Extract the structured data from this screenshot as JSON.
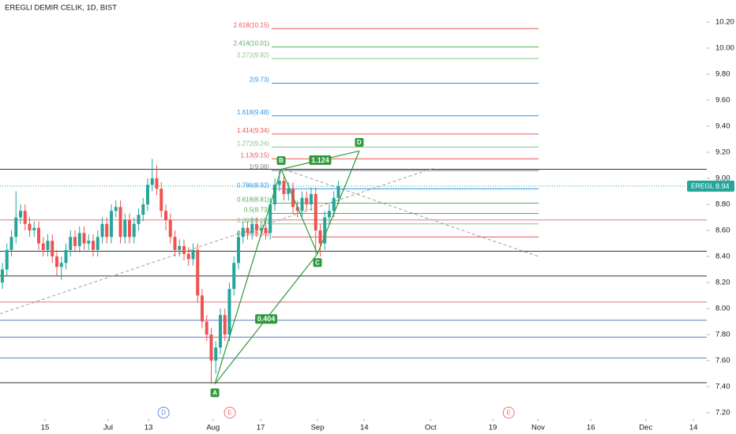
{
  "chart_data": {
    "type": "candlestick",
    "title": "EREGLI DEMIR CELIK, 1D, BIST",
    "up_color": "#26a69a",
    "down_color": "#ef5350",
    "open": [
      8.2,
      8.3,
      8.45,
      8.55,
      8.7,
      8.75,
      8.65,
      8.6,
      8.62,
      8.5,
      8.45,
      8.52,
      8.4,
      8.32,
      8.35,
      8.45,
      8.55,
      8.48,
      8.58,
      8.5,
      8.52,
      8.45,
      8.55,
      8.65,
      8.55,
      8.75,
      8.78,
      8.55,
      8.68,
      8.55,
      8.65,
      8.72,
      8.8,
      8.95,
      9.0,
      8.92,
      8.75,
      8.68,
      8.55,
      8.45,
      8.48,
      8.42,
      8.38,
      8.45,
      8.1,
      7.9,
      7.8,
      7.6,
      7.7,
      7.95,
      7.8,
      8.15,
      8.35,
      8.55,
      8.62,
      8.58,
      8.65,
      8.6,
      8.62,
      8.58,
      8.8,
      8.95,
      8.98,
      8.88,
      8.92,
      8.78,
      8.75,
      8.85,
      8.8,
      8.88,
      8.6,
      8.5,
      8.7,
      8.75,
      8.85
    ],
    "high": [
      8.35,
      8.5,
      8.6,
      8.9,
      8.8,
      8.8,
      8.7,
      8.67,
      8.67,
      8.55,
      8.57,
      8.57,
      8.45,
      8.4,
      8.5,
      8.6,
      8.6,
      8.63,
      8.63,
      8.57,
      8.57,
      8.6,
      8.7,
      8.7,
      8.8,
      8.83,
      8.83,
      8.73,
      8.73,
      8.7,
      8.77,
      8.85,
      9.0,
      9.15,
      9.1,
      8.97,
      8.8,
      8.73,
      8.6,
      8.53,
      8.53,
      8.47,
      8.5,
      8.5,
      8.15,
      7.95,
      7.85,
      7.75,
      8.0,
      8.0,
      8.2,
      8.4,
      8.6,
      8.67,
      8.67,
      8.7,
      8.7,
      8.67,
      8.67,
      8.85,
      9.0,
      9.06,
      9.03,
      8.97,
      8.97,
      8.83,
      8.9,
      8.9,
      8.93,
      8.93,
      8.65,
      8.75,
      8.8,
      8.9,
      8.98
    ],
    "low": [
      8.15,
      8.25,
      8.4,
      8.5,
      8.65,
      8.6,
      8.55,
      8.55,
      8.45,
      8.4,
      8.4,
      8.35,
      8.25,
      8.22,
      8.3,
      8.4,
      8.43,
      8.43,
      8.45,
      8.45,
      8.4,
      8.4,
      8.5,
      8.5,
      8.5,
      8.7,
      8.5,
      8.5,
      8.5,
      8.5,
      8.6,
      8.67,
      8.75,
      8.9,
      8.87,
      8.7,
      8.6,
      8.5,
      8.4,
      8.4,
      8.37,
      8.33,
      8.33,
      8.05,
      7.85,
      7.75,
      7.42,
      7.5,
      7.65,
      7.75,
      7.75,
      8.1,
      8.3,
      8.5,
      8.53,
      8.53,
      8.55,
      8.55,
      8.53,
      8.53,
      8.75,
      8.9,
      8.83,
      8.83,
      8.73,
      8.7,
      8.7,
      8.75,
      8.75,
      8.42,
      8.4,
      8.45,
      8.65,
      8.7,
      8.8
    ],
    "close": [
      8.3,
      8.45,
      8.55,
      8.7,
      8.75,
      8.65,
      8.6,
      8.62,
      8.5,
      8.45,
      8.52,
      8.4,
      8.32,
      8.35,
      8.45,
      8.55,
      8.48,
      8.58,
      8.5,
      8.52,
      8.45,
      8.55,
      8.65,
      8.55,
      8.75,
      8.78,
      8.55,
      8.68,
      8.55,
      8.65,
      8.72,
      8.8,
      8.95,
      9.0,
      8.92,
      8.75,
      8.68,
      8.55,
      8.45,
      8.48,
      8.42,
      8.38,
      8.45,
      8.1,
      7.9,
      7.8,
      7.6,
      7.7,
      7.95,
      7.8,
      8.15,
      8.35,
      8.55,
      8.62,
      8.58,
      8.65,
      8.6,
      8.62,
      8.58,
      8.8,
      8.95,
      8.98,
      8.88,
      8.92,
      8.78,
      8.75,
      8.85,
      8.8,
      8.88,
      8.6,
      8.5,
      8.7,
      8.75,
      8.85,
      8.94
    ],
    "xlim": [
      -0.52,
      155.13
    ],
    "xticks": [
      {
        "value": 9.4,
        "label": "15"
      },
      {
        "value": 23.3,
        "label": "Jul"
      },
      {
        "value": 32.2,
        "label": "13"
      },
      {
        "value": 46.4,
        "label": "Aug"
      },
      {
        "value": 56.9,
        "label": "17"
      },
      {
        "value": 69.4,
        "label": "Sep"
      },
      {
        "value": 79.7,
        "label": "14"
      },
      {
        "value": 94.3,
        "label": "Oct"
      },
      {
        "value": 108,
        "label": "19"
      },
      {
        "value": 118,
        "label": "Nov"
      },
      {
        "value": 129.6,
        "label": "16"
      },
      {
        "value": 141.7,
        "label": "Dec"
      },
      {
        "value": 152.2,
        "label": "14"
      }
    ],
    "ylim": [
      7.2,
      10.2
    ],
    "yticks": [
      {
        "value": 10.2,
        "label": "10.20"
      },
      {
        "value": 10.0,
        "label": "10.00"
      },
      {
        "value": 9.8,
        "label": "9.80"
      },
      {
        "value": 9.6,
        "label": "9.60"
      },
      {
        "value": 9.4,
        "label": "9.40"
      },
      {
        "value": 9.2,
        "label": "9.20"
      },
      {
        "value": 9.0,
        "label": "9.00"
      },
      {
        "value": 8.8,
        "label": "8.80"
      },
      {
        "value": 8.6,
        "label": "8.60"
      },
      {
        "value": 8.4,
        "label": "8.40"
      },
      {
        "value": 8.2,
        "label": "8.20"
      },
      {
        "value": 8.0,
        "label": "8.00"
      },
      {
        "value": 7.8,
        "label": "7.80"
      },
      {
        "value": 7.6,
        "label": "7.60"
      },
      {
        "value": 7.4,
        "label": "7.40"
      },
      {
        "value": 7.2,
        "label": "7.20"
      }
    ],
    "last_price": {
      "symbol": "EREGL",
      "value": 8.94,
      "color": "#26a69a"
    },
    "levels": [
      {
        "value": 9.07,
        "color": "#333333"
      },
      {
        "value": 8.44,
        "color": "#333333"
      },
      {
        "value": 8.25,
        "color": "#333333"
      },
      {
        "value": 7.43,
        "color": "#333333"
      },
      {
        "value": 8.68,
        "color": "#e57373"
      },
      {
        "value": 8.05,
        "color": "#e57373"
      },
      {
        "value": 7.91,
        "color": "#5c7cc4"
      },
      {
        "value": 7.78,
        "color": "#5c7cc4"
      },
      {
        "value": 7.62,
        "color": "#5c7cc4"
      }
    ],
    "fib_xlim": [
      59.3,
      118.1
    ],
    "fib": [
      {
        "label": "2.618(10.15)",
        "price": 10.15,
        "color": "#ef5350"
      },
      {
        "label": "2.414(10.01)",
        "price": 10.01,
        "color": "#4caf50"
      },
      {
        "label": "2.272(9.92)",
        "price": 9.92,
        "color": "#81c784"
      },
      {
        "label": "2(9.73)",
        "price": 9.73,
        "color": "#2196f3"
      },
      {
        "label": "1.618(9.48)",
        "price": 9.48,
        "color": "#2196f3"
      },
      {
        "label": "1.414(9.34)",
        "price": 9.34,
        "color": "#ef5350"
      },
      {
        "label": "1.272(9.24)",
        "price": 9.24,
        "color": "#81c784"
      },
      {
        "label": "1.13(9.15)",
        "price": 9.15,
        "color": "#ef5350"
      },
      {
        "label": "1(9.06)",
        "price": 9.06,
        "color": "#787b86"
      },
      {
        "label": "0.786(8.92)",
        "price": 8.92,
        "color": "#2196f3"
      },
      {
        "label": "0.618(8.81)",
        "price": 8.81,
        "color": "#4caf50"
      },
      {
        "label": "0.5(8.73)",
        "price": 8.73,
        "color": "#4caf50"
      },
      {
        "label": "0.382(8.65)",
        "price": 8.65,
        "color": "#81c784"
      },
      {
        "label": "0.236(8.55)",
        "price": 8.55,
        "color": "#ef5350"
      }
    ],
    "trendlines": [
      {
        "x": [
          -0.52,
          95.1
        ],
        "y": [
          7.96,
          9.08
        ]
      },
      {
        "x": [
          62,
          118.1
        ],
        "y": [
          9.07,
          8.4
        ]
      }
    ],
    "pattern": {
      "color": "#2e9a3a",
      "points": [
        {
          "label": "A",
          "x": 46.8,
          "y": 7.42
        },
        {
          "label": "B",
          "x": 61.4,
          "y": 9.07
        },
        {
          "label": "C",
          "x": 69.4,
          "y": 8.42
        },
        {
          "label": "D",
          "x": 78.6,
          "y": 9.21
        }
      ],
      "ratios": [
        0.404,
        1.124
      ]
    },
    "events": [
      {
        "label": "D",
        "x": 35.5,
        "color": "#5c8fd6"
      },
      {
        "label": "E",
        "x": 50.1,
        "color": "#ef7070"
      },
      {
        "label": "E",
        "x": 111.5,
        "color": "#ef7070"
      }
    ]
  }
}
